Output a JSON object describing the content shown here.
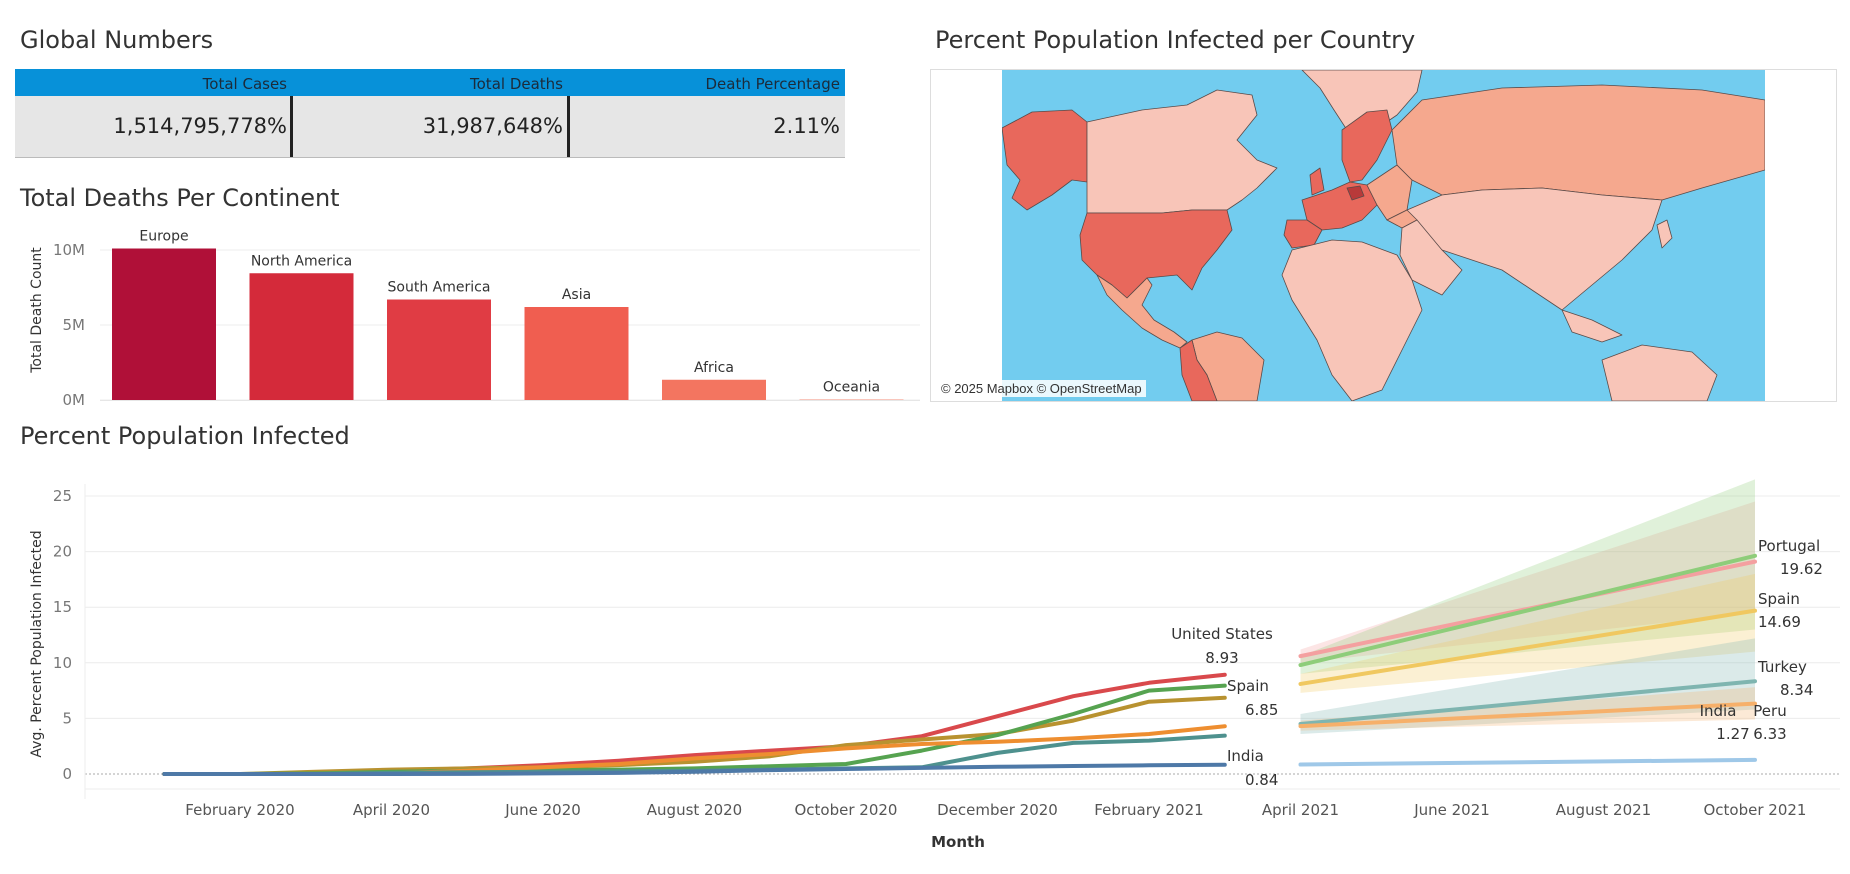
{
  "global_numbers": {
    "title": "Global Numbers",
    "headers": [
      "Total Cases",
      "Total Deaths",
      "Death Percentage"
    ],
    "values": [
      "1,514,795,778%",
      "31,987,648%",
      "2.11%"
    ]
  },
  "map": {
    "title": "Percent Population Infected per Country",
    "attribution": "© 2025 Mapbox © OpenStreetMap",
    "colors": {
      "ocean": "#72ccef",
      "land_light": "#f8c5b8",
      "land_mid": "#f5a88e",
      "land_dark": "#e8685c"
    }
  },
  "chart_data": [
    {
      "type": "bar",
      "title": "Total Deaths Per Continent",
      "ylabel": "Total Death Count",
      "categories": [
        "Europe",
        "North America",
        "South America",
        "Asia",
        "Africa",
        "Oceania"
      ],
      "values": [
        10100000,
        8450000,
        6700000,
        6200000,
        1350000,
        40000
      ],
      "ylim": [
        0,
        11000000
      ],
      "yticks": [
        {
          "value": 0,
          "label": "0M"
        },
        {
          "value": 5000000,
          "label": "5M"
        },
        {
          "value": 10000000,
          "label": "10M"
        }
      ],
      "colors": [
        "#b01038",
        "#d42a3a",
        "#e03c44",
        "#f05e50",
        "#f37560",
        "#f5a090"
      ],
      "grid": true
    },
    {
      "type": "line",
      "title": "Percent Population Infected",
      "xlabel": "Month",
      "ylabel": "Avg. Percent Population Infected",
      "ylim": [
        0,
        27
      ],
      "yticks": [
        0,
        5,
        10,
        15,
        20,
        25
      ],
      "xticks": [
        "February 2020",
        "April 2020",
        "June 2020",
        "August 2020",
        "October 2020",
        "December 2020",
        "February 2021",
        "April 2021",
        "June 2021",
        "August 2021",
        "October 2021"
      ],
      "x_months": [
        "2020-01",
        "2020-02",
        "2020-03",
        "2020-04",
        "2020-05",
        "2020-06",
        "2020-07",
        "2020-08",
        "2020-09",
        "2020-10",
        "2020-11",
        "2020-12",
        "2021-01",
        "2021-02",
        "2021-03",
        "2021-04"
      ],
      "series": [
        {
          "name": "United States",
          "color": "#d9494c",
          "values": [
            0,
            0,
            0.01,
            0.3,
            0.5,
            0.8,
            1.2,
            1.7,
            2.1,
            2.5,
            3.4,
            5.2,
            7.0,
            8.2,
            8.93,
            null
          ]
        },
        {
          "name": "Spain",
          "color": "#b89230",
          "values": [
            0,
            0,
            0.2,
            0.4,
            0.5,
            0.6,
            0.8,
            1.1,
            1.6,
            2.6,
            3.1,
            3.6,
            4.8,
            6.5,
            6.85,
            null
          ]
        },
        {
          "name": "Portugal",
          "color": "#56a350",
          "values": [
            0,
            0,
            0.05,
            0.2,
            0.3,
            0.35,
            0.4,
            0.5,
            0.7,
            0.9,
            2.1,
            3.5,
            5.4,
            7.5,
            7.95,
            null
          ]
        },
        {
          "name": "Peru",
          "color": "#ee8e30",
          "values": [
            0,
            0,
            0,
            0.05,
            0.3,
            0.6,
            0.9,
            1.4,
            1.8,
            2.3,
            2.7,
            2.9,
            3.2,
            3.6,
            4.3,
            null
          ]
        },
        {
          "name": "Turkey",
          "color": "#4e918e",
          "values": [
            0,
            0,
            0,
            0.1,
            0.15,
            0.2,
            0.25,
            0.3,
            0.4,
            0.5,
            0.6,
            1.9,
            2.8,
            3.0,
            3.45,
            null
          ]
        },
        {
          "name": "India",
          "color": "#4e79a7",
          "values": [
            0,
            0,
            0,
            0,
            0.01,
            0.05,
            0.1,
            0.2,
            0.35,
            0.45,
            0.55,
            0.65,
            0.72,
            0.78,
            0.84,
            null
          ]
        }
      ],
      "forecast": {
        "x_months": [
          "2021-04",
          "2021-10"
        ],
        "series": [
          {
            "name": "Portugal",
            "color": "#f4a0a0",
            "values": [
              10.6,
              19.1
            ],
            "band": [
              [
                10.0,
                11.2
              ],
              [
                14.5,
                24.5
              ]
            ]
          },
          {
            "name": "Portugal",
            "color": "#8ecd7a",
            "values": [
              9.8,
              19.62
            ],
            "band": [
              [
                9.0,
                10.6
              ],
              [
                13.0,
                26.5
              ]
            ]
          },
          {
            "name": "Spain",
            "color": "#f0c860",
            "values": [
              8.1,
              14.69
            ],
            "band": [
              [
                7.3,
                9.0
              ],
              [
                11.0,
                18.0
              ]
            ]
          },
          {
            "name": "Turkey",
            "color": "#7fb5b0",
            "values": [
              4.5,
              8.34
            ],
            "band": [
              [
                3.6,
                5.4
              ],
              [
                5.8,
                12.2
              ]
            ]
          },
          {
            "name": "Peru",
            "color": "#f6b06a",
            "values": [
              4.3,
              6.33
            ],
            "band": [
              [
                3.9,
                4.8
              ],
              [
                4.9,
                7.8
              ]
            ]
          },
          {
            "name": "India",
            "color": "#9fc8e8",
            "values": [
              0.85,
              1.27
            ],
            "band": [
              [
                0.75,
                0.95
              ],
              [
                1.1,
                1.45
              ]
            ]
          }
        ]
      },
      "annotations": [
        {
          "name": "United States",
          "value": "8.93"
        },
        {
          "name": "Spain",
          "value": "6.85"
        },
        {
          "name": "India",
          "value": "0.84"
        },
        {
          "name": "Portugal",
          "value": "19.62"
        },
        {
          "name": "Spain",
          "value": "14.69"
        },
        {
          "name": "Turkey",
          "value": "8.34"
        },
        {
          "name": "India",
          "value": "1.27"
        },
        {
          "name": "Peru",
          "value": "6.33"
        }
      ],
      "grid": true
    }
  ]
}
